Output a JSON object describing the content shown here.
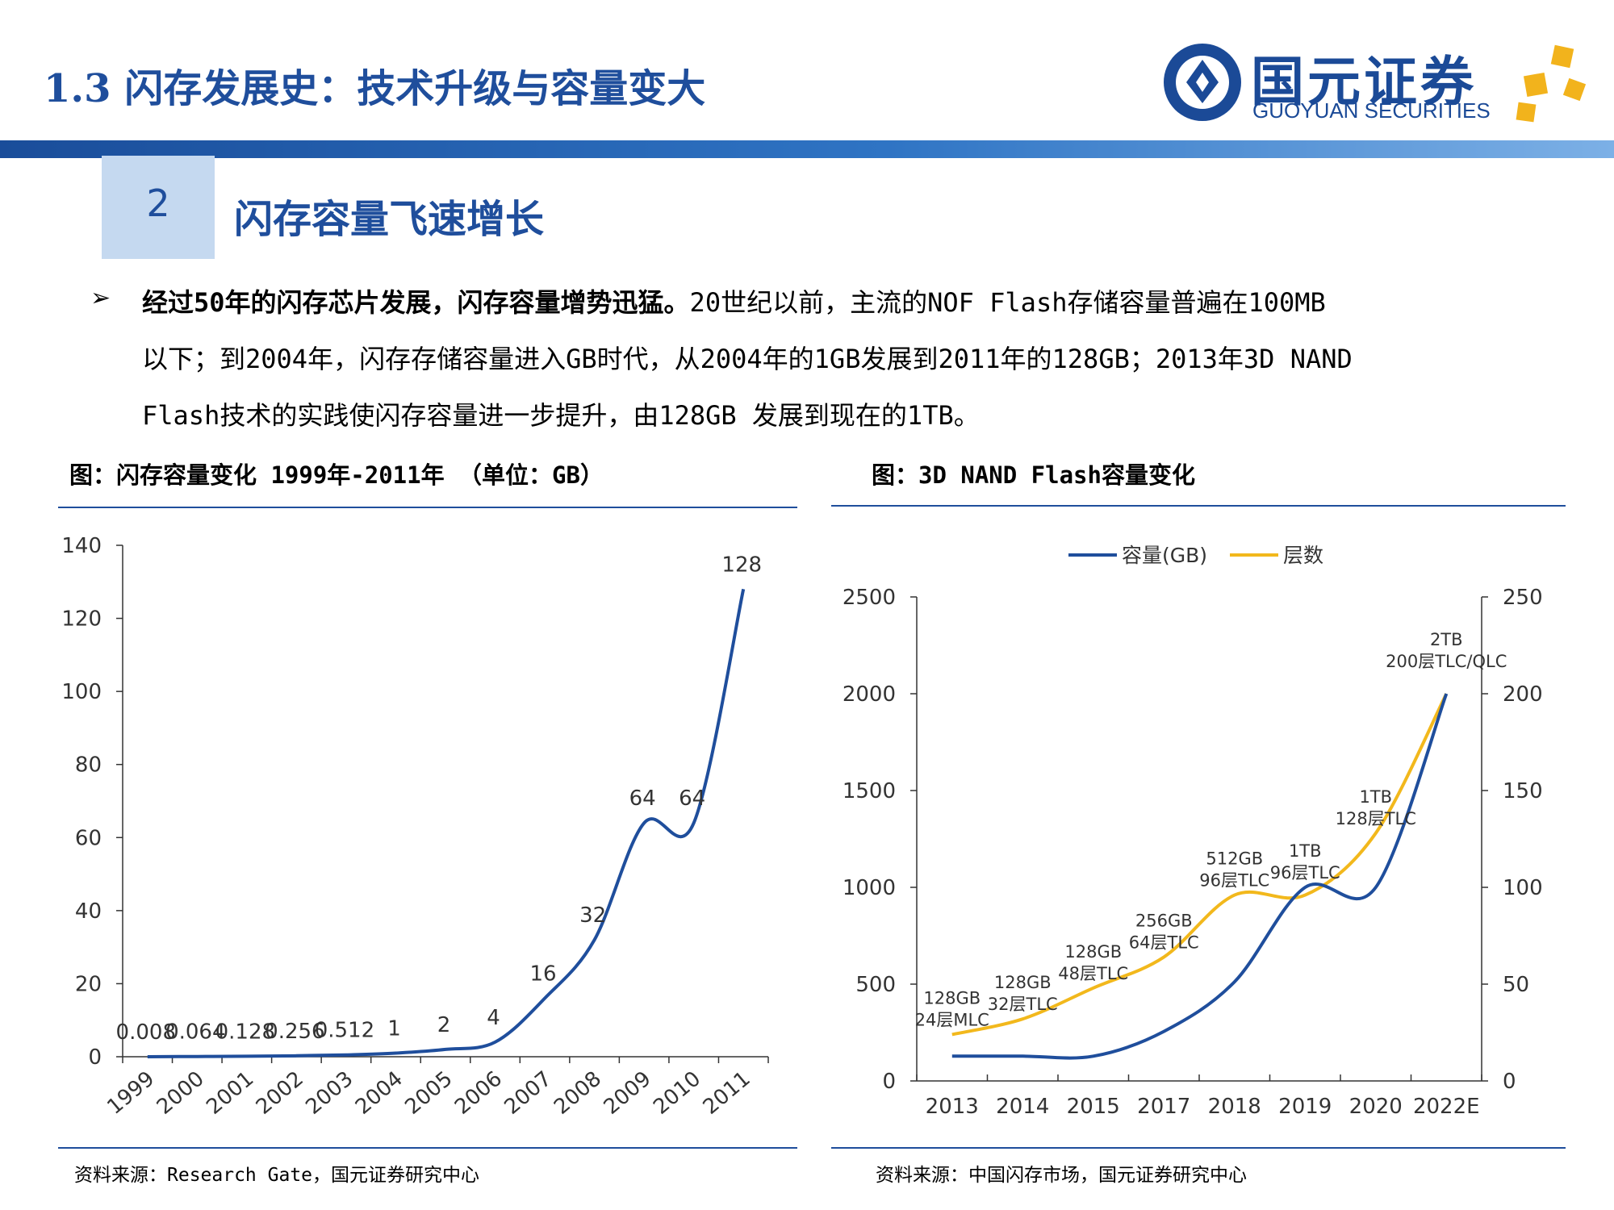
{
  "header": {
    "title": "1.3 闪存发展史：技术升级与容量变大",
    "brand_cn": "国元证券",
    "brand_en": "GUOYUAN SECURITIES"
  },
  "section": {
    "number": "2",
    "title": "闪存容量飞速增长"
  },
  "body": {
    "bullet": "➢",
    "lead_bold": "经过50年的闪存芯片发展，闪存容量增势迅猛。",
    "line1_rest": "20世纪以前，主流的NOF Flash存储容量普遍在100MB",
    "line2": "以下；到2004年，闪存存储容量进入GB时代，从2004年的1GB发展到2011年的128GB；2013年3D NAND",
    "line3": "Flash技术的实践使闪存容量进一步提升，由128GB 发展到现在的1TB。"
  },
  "figure1": {
    "title": "图：闪存容量变化 1999年-2011年  （单位：GB）",
    "source": "资料来源：Research Gate，国元证券研究中心"
  },
  "figure2": {
    "title": "图：3D NAND Flash容量变化",
    "source": "资料来源：中国闪存市场，国元证券研究中心"
  },
  "colors": {
    "brand_blue": "#1f4e9c",
    "line_blue": "#1f4e9c",
    "line_gold": "#f2b81c",
    "logo_gold": "#f2b31c"
  },
  "chart_data": [
    {
      "type": "line",
      "categories": [
        "1999",
        "2000",
        "2001",
        "2002",
        "2003",
        "2004",
        "2005",
        "2006",
        "2007",
        "2008",
        "2009",
        "2010",
        "2011"
      ],
      "series": [
        {
          "values": [
            0.008,
            0.064,
            0.128,
            0.256,
            0.512,
            1,
            2,
            4,
            16,
            32,
            64,
            64,
            128
          ],
          "labels": [
            "0.008",
            "0.064",
            "0.128",
            "0.256",
            "0.512",
            "1",
            "2",
            "4",
            "16",
            "32",
            "64",
            "64",
            "128"
          ]
        }
      ],
      "ylim": [
        0,
        140
      ],
      "yticks": [
        0,
        20,
        40,
        60,
        80,
        100,
        120,
        140
      ],
      "grid": false,
      "legend": "none"
    },
    {
      "type": "line",
      "categories": [
        "2013",
        "2014",
        "2015",
        "2017",
        "2018",
        "2019",
        "2020",
        "2022E"
      ],
      "series": [
        {
          "name": "容量(GB)",
          "axis": "left",
          "color": "#1f4e9c",
          "values": [
            128,
            128,
            128,
            256,
            512,
            1000,
            1000,
            2000
          ]
        },
        {
          "name": "层数",
          "axis": "right",
          "color": "#f2b81c",
          "values": [
            24,
            32,
            48,
            64,
            96,
            96,
            128,
            200
          ]
        }
      ],
      "annotations": [
        {
          "category": "2013",
          "lines": [
            "128GB",
            "24层MLC"
          ]
        },
        {
          "category": "2014",
          "lines": [
            "128GB",
            "32层TLC"
          ]
        },
        {
          "category": "2015",
          "lines": [
            "128GB",
            "48层TLC"
          ]
        },
        {
          "category": "2017",
          "lines": [
            "256GB",
            "64层TLC"
          ]
        },
        {
          "category": "2018",
          "lines": [
            "512GB",
            "96层TLC"
          ]
        },
        {
          "category": "2019",
          "lines": [
            "1TB",
            "96层TLC"
          ]
        },
        {
          "category": "2020",
          "lines": [
            "1TB",
            "128层TLC"
          ]
        },
        {
          "category": "2022E",
          "lines": [
            "2TB",
            "200层TLC/QLC"
          ]
        }
      ],
      "ylim_left": [
        0,
        2500
      ],
      "yticks_left": [
        0,
        500,
        1000,
        1500,
        2000,
        2500
      ],
      "ylim_right": [
        0,
        250
      ],
      "yticks_right": [
        0,
        50,
        100,
        150,
        200,
        250
      ],
      "grid": false,
      "legend": "top"
    }
  ]
}
